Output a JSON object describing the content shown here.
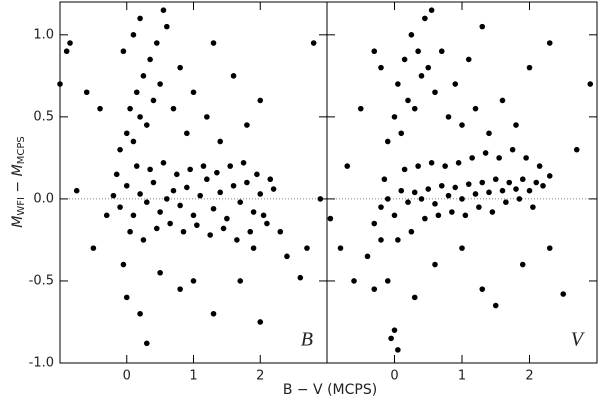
{
  "chart_data": [
    {
      "type": "scatter",
      "panel_label": "B",
      "xlabel": "B − V (MCPS)",
      "ylabel": [
        "M",
        "WFI",
        " − M",
        "MCPS"
      ],
      "xlim": [
        -1,
        3
      ],
      "ylim": [
        -1.0,
        1.2
      ],
      "xticks": [
        0,
        1,
        2
      ],
      "yticks": [
        {
          "value": -1.0,
          "label": "-1.0"
        },
        -0.5,
        {
          "value": 0,
          "label": "0.0"
        },
        0.5,
        {
          "value": 1.0,
          "label": "1.0"
        }
      ],
      "reference_line": 0,
      "color": "#000000",
      "x": [
        -0.2,
        -0.1,
        0.0,
        0.1,
        0.2,
        0.3,
        0.4,
        0.5,
        0.6,
        0.7,
        0.8,
        0.9,
        1.0,
        1.1,
        1.2,
        1.3,
        1.4,
        1.5,
        1.6,
        1.7,
        1.8,
        1.9,
        2.0,
        2.1,
        2.2,
        2.3,
        -0.3,
        -0.15,
        0.05,
        0.15,
        0.25,
        0.35,
        0.45,
        0.55,
        0.65,
        0.75,
        0.85,
        0.95,
        1.05,
        1.15,
        1.25,
        1.35,
        1.45,
        1.55,
        1.65,
        1.75,
        1.85,
        1.95,
        2.05,
        2.15,
        -0.1,
        0.0,
        0.05,
        0.1,
        0.15,
        0.2,
        0.25,
        0.3,
        0.35,
        0.4,
        0.45,
        0.5,
        0.1,
        -0.05,
        0.2,
        0.6,
        0.7,
        0.8,
        0.9,
        1.0,
        1.2,
        1.4,
        1.6,
        1.8,
        2.0,
        1.3,
        0.55,
        -0.4,
        -0.6,
        -0.85,
        -0.9,
        -1.0,
        -0.75,
        -0.5,
        0.0,
        0.2,
        0.3,
        0.5,
        0.8,
        1.0,
        1.3,
        1.7,
        2.0,
        2.4,
        2.6,
        2.7,
        2.8,
        2.9,
        -0.05,
        1.9
      ],
      "y": [
        0.02,
        -0.05,
        0.08,
        -0.1,
        0.03,
        -0.02,
        0.1,
        -0.08,
        0.0,
        0.05,
        -0.04,
        0.07,
        -0.1,
        0.02,
        0.12,
        -0.06,
        0.04,
        -0.12,
        0.08,
        -0.02,
        0.1,
        -0.08,
        0.03,
        -0.15,
        0.06,
        -0.2,
        -0.1,
        0.15,
        -0.2,
        0.2,
        -0.25,
        0.18,
        -0.18,
        0.22,
        -0.15,
        0.15,
        -0.2,
        0.18,
        -0.16,
        0.2,
        -0.22,
        0.16,
        -0.18,
        0.2,
        -0.25,
        0.22,
        -0.2,
        0.15,
        -0.1,
        0.12,
        0.3,
        0.4,
        0.55,
        0.35,
        0.65,
        0.5,
        0.75,
        0.45,
        0.85,
        0.6,
        0.95,
        0.7,
        1.0,
        0.9,
        1.1,
        1.05,
        0.55,
        0.8,
        0.4,
        0.65,
        0.5,
        0.35,
        0.75,
        0.45,
        0.6,
        0.95,
        1.15,
        0.55,
        0.65,
        0.95,
        0.9,
        0.7,
        0.05,
        -0.3,
        -0.6,
        -0.7,
        -0.88,
        -0.45,
        -0.55,
        -0.5,
        -0.7,
        -0.5,
        -0.75,
        -0.35,
        -0.48,
        -0.3,
        0.95,
        0.0,
        -0.4,
        -0.3
      ]
    },
    {
      "type": "scatter",
      "panel_label": "V",
      "xlim": [
        -1,
        3
      ],
      "ylim": [
        -1.0,
        1.2
      ],
      "xticks": [
        0,
        1,
        2
      ],
      "yticks": [
        -1.0,
        -0.5,
        0,
        0.5,
        1.0
      ],
      "reference_line": 0,
      "color": "#000000",
      "x": [
        -0.2,
        -0.1,
        0.0,
        0.1,
        0.2,
        0.3,
        0.4,
        0.5,
        0.6,
        0.7,
        0.8,
        0.9,
        1.0,
        1.1,
        1.2,
        1.3,
        1.4,
        1.5,
        1.6,
        1.7,
        1.8,
        1.9,
        2.0,
        2.1,
        2.2,
        2.3,
        -0.3,
        -0.15,
        0.05,
        0.15,
        0.25,
        0.35,
        0.45,
        0.55,
        0.65,
        0.75,
        0.85,
        0.95,
        1.05,
        1.15,
        1.25,
        1.35,
        1.45,
        1.55,
        1.65,
        1.75,
        1.85,
        1.95,
        2.05,
        2.15,
        -0.1,
        0.0,
        0.05,
        0.1,
        0.15,
        0.2,
        0.25,
        0.3,
        0.35,
        0.4,
        0.45,
        0.5,
        0.55,
        0.6,
        0.7,
        0.8,
        0.9,
        1.0,
        1.1,
        1.2,
        1.4,
        1.6,
        1.8,
        2.0,
        2.3,
        1.3,
        -0.2,
        -0.3,
        -0.5,
        -0.7,
        -0.8,
        -0.6,
        -0.4,
        -0.3,
        -0.2,
        -0.1,
        0.0,
        0.05,
        -0.05,
        0.3,
        0.6,
        1.0,
        1.3,
        1.5,
        1.9,
        2.3,
        2.5,
        2.7,
        2.9,
        -0.95
      ],
      "y": [
        -0.05,
        0.0,
        -0.1,
        0.05,
        -0.02,
        0.04,
        0.0,
        0.06,
        -0.03,
        0.08,
        0.02,
        0.07,
        0.0,
        0.09,
        0.03,
        0.1,
        0.04,
        0.12,
        0.05,
        0.1,
        0.06,
        0.12,
        0.05,
        0.1,
        0.08,
        0.14,
        -0.15,
        0.12,
        -0.25,
        0.18,
        -0.2,
        0.2,
        -0.12,
        0.22,
        -0.1,
        0.2,
        -0.08,
        0.22,
        -0.1,
        0.25,
        -0.05,
        0.28,
        -0.08,
        0.25,
        -0.02,
        0.3,
        0.0,
        0.25,
        -0.05,
        0.2,
        0.35,
        0.5,
        0.7,
        0.4,
        0.85,
        0.6,
        1.0,
        0.55,
        0.9,
        0.75,
        1.1,
        0.8,
        1.15,
        0.65,
        0.9,
        0.5,
        0.7,
        0.45,
        0.85,
        0.55,
        0.4,
        0.6,
        0.45,
        0.8,
        0.95,
        1.05,
        0.8,
        0.9,
        0.55,
        0.2,
        -0.3,
        -0.5,
        -0.35,
        -0.55,
        -0.25,
        -0.5,
        -0.8,
        -0.92,
        -0.85,
        -0.6,
        -0.4,
        -0.3,
        -0.55,
        -0.65,
        -0.4,
        -0.3,
        -0.58,
        0.3,
        0.7,
        -0.12
      ]
    }
  ]
}
